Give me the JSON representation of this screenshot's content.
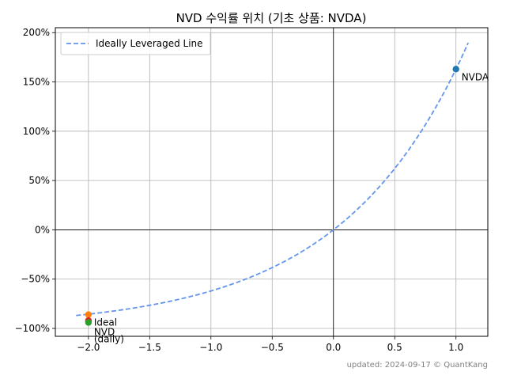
{
  "chart_data": {
    "type": "scatter",
    "title": "NVD 수익률 위치 (기초 상품: NVDA)",
    "xlabel": "",
    "ylabel": "",
    "xlim": [
      -2.27,
      1.26
    ],
    "ylim": [
      -108,
      205
    ],
    "x_ticks": [
      -2.0,
      -1.5,
      -1.0,
      -0.5,
      0.0,
      0.5,
      1.0
    ],
    "x_tick_labels": [
      "−2.0",
      "−1.5",
      "−1.0",
      "−0.5",
      "0.0",
      "0.5",
      "1.0"
    ],
    "y_ticks": [
      -100,
      -50,
      0,
      50,
      100,
      150,
      200
    ],
    "y_tick_labels": [
      "−100%",
      "−50%",
      "0%",
      "50%",
      "100%",
      "150%",
      "200%"
    ],
    "grid": true,
    "legend": {
      "position": "upper-left",
      "entries": [
        "Ideally Leveraged Line"
      ]
    },
    "line_series": {
      "name": "Ideally Leveraged Line",
      "style": "dashed",
      "color": "#6495ed",
      "x_range": [
        -2.1,
        1.1
      ],
      "base_return": 1.63
    },
    "points": [
      {
        "label": "NVDA",
        "x": 1.0,
        "y": 163,
        "color": "#1f77b4"
      },
      {
        "label": "Ideal",
        "x": -2.0,
        "y": -86,
        "color": "#ff7f0e"
      },
      {
        "label": "",
        "x": -2.0,
        "y": -92,
        "color": "#d62728"
      },
      {
        "label": "NVD",
        "x": -2.0,
        "y": -94,
        "color": "#2ca02c"
      },
      {
        "label": "(daily)",
        "x": -2.0,
        "y": -94,
        "color": "#2ca02c"
      }
    ],
    "footer": "updated: 2024-09-17 © QuantKang"
  }
}
